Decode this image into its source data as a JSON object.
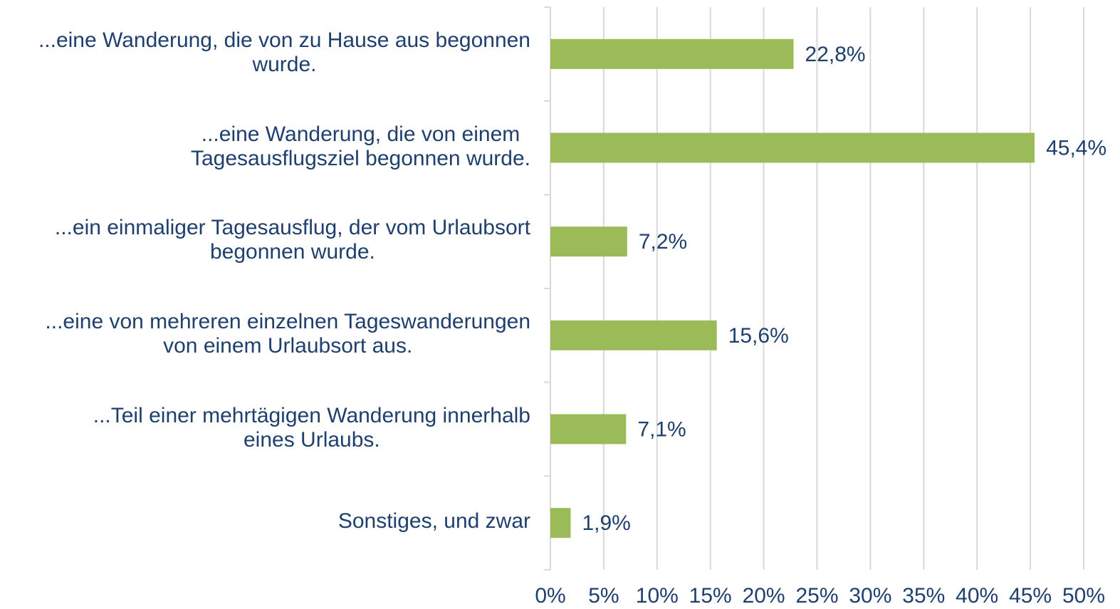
{
  "chart_data": {
    "type": "barh",
    "categories": [
      "...eine Wanderung, die von zu Hause aus begonnen\nwurde.",
      "...eine Wanderung, die von einem\nTagesausflugsziel begonnen wurde.",
      "...ein einmaliger Tagesausflug, der vom Urlaubsort\nbegonnen wurde.",
      "...eine von mehreren einzelnen Tageswanderungen\nvon einem Urlaubsort aus.",
      "...Teil einer mehrtägigen Wanderung innerhalb\neines Urlaubs.",
      "Sonstiges, und zwar"
    ],
    "values": [
      22.8,
      45.4,
      7.2,
      15.6,
      7.1,
      1.9
    ],
    "value_labels": [
      "22,8%",
      "45,4%",
      "7,2%",
      "15,6%",
      "7,1%",
      "1,9%"
    ],
    "color": "#9bbb59",
    "xlim": [
      0,
      50
    ],
    "xticks": [
      {
        "value": 0,
        "label": "0%"
      },
      {
        "value": 5,
        "label": "5%"
      },
      {
        "value": 10,
        "label": "10%"
      },
      {
        "value": 15,
        "label": "15%"
      },
      {
        "value": 20,
        "label": "20%"
      },
      {
        "value": 25,
        "label": "25%"
      },
      {
        "value": 30,
        "label": "30%"
      },
      {
        "value": 35,
        "label": "35%"
      },
      {
        "value": 40,
        "label": "40%"
      },
      {
        "value": 45,
        "label": "45%"
      },
      {
        "value": 50,
        "label": "50%"
      }
    ],
    "grid": true
  }
}
